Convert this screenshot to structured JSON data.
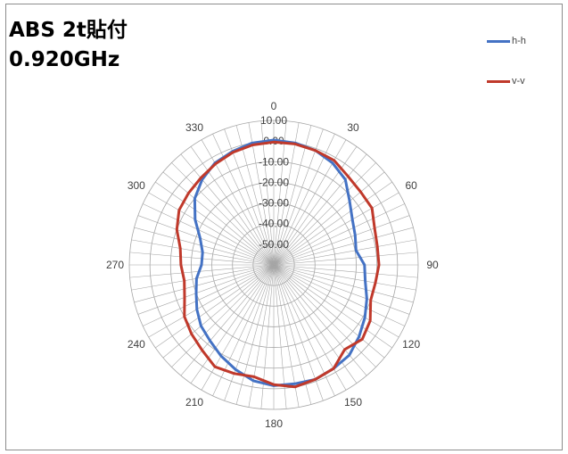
{
  "title": {
    "line1": "ABS 2t貼付",
    "line2": "0.920GHz"
  },
  "legend": [
    {
      "name": "h-h",
      "color": "#4472c4"
    },
    {
      "name": "v-v",
      "color": "#c0392b"
    }
  ],
  "chart_data": {
    "type": "polar-line",
    "title": "ABS 2t貼付 0.920GHz",
    "angle_labels": [
      "0",
      "30",
      "60",
      "90",
      "120",
      "150",
      "180",
      "210",
      "240",
      "270",
      "300",
      "330"
    ],
    "radial_labels": [
      "10.00",
      "0.00",
      "-10.00",
      "-20.00",
      "-30.00",
      "-40.00",
      "-50.00"
    ],
    "r_range": [
      -60,
      10
    ],
    "grid": true,
    "legend_position": "top-right",
    "angles_deg": [
      0,
      10,
      20,
      30,
      40,
      50,
      60,
      70,
      80,
      90,
      100,
      110,
      120,
      130,
      140,
      150,
      160,
      170,
      180,
      190,
      200,
      210,
      220,
      230,
      240,
      250,
      260,
      270,
      280,
      290,
      300,
      310,
      320,
      330,
      340,
      350
    ],
    "series": [
      {
        "name": "h-h",
        "color": "#4472c4",
        "values": [
          0.5,
          0.0,
          -1.0,
          -3.0,
          -6.0,
          -12.0,
          -16.0,
          -18.0,
          -19.5,
          -16.0,
          -15.0,
          -12.0,
          -9.0,
          -6.0,
          -3.0,
          -2.0,
          -1.0,
          -1.5,
          -1.5,
          -3.0,
          -6.0,
          -9.0,
          -12.0,
          -14.0,
          -17.0,
          -20.0,
          -22.0,
          -25.0,
          -25.0,
          -22.0,
          -16.0,
          -10.0,
          -6.0,
          -3.0,
          -1.5,
          0.0
        ]
      },
      {
        "name": "v-v",
        "color": "#c0392b",
        "values": [
          -0.5,
          -0.5,
          -1.0,
          -1.5,
          -4.0,
          -5.0,
          -5.0,
          -8.0,
          -9.0,
          -9.0,
          -10.0,
          -10.0,
          -6.0,
          -4.0,
          -6.5,
          -2.0,
          -1.0,
          0.0,
          -2.0,
          -5.0,
          -4.0,
          -3.0,
          -6.0,
          -8.0,
          -10.0,
          -14.0,
          -16.0,
          -15.0,
          -14.0,
          -10.0,
          -7.0,
          -6.0,
          -5.0,
          -3.5,
          -2.0,
          -1.0
        ]
      }
    ]
  }
}
